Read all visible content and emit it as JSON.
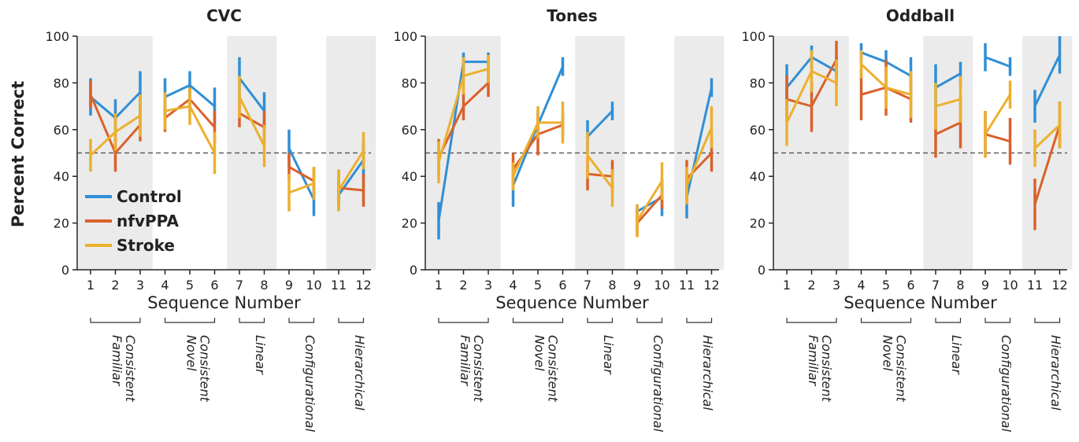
{
  "chart_data": {
    "type": "line",
    "ylabel": "Percent Correct",
    "xlabel": "Sequence Number",
    "ylim": [
      0,
      100
    ],
    "yticks": [
      0,
      20,
      40,
      60,
      80,
      100
    ],
    "chance_line": 50,
    "x": [
      1,
      2,
      3,
      4,
      5,
      6,
      7,
      8,
      9,
      10,
      11,
      12
    ],
    "segments": [
      [
        1,
        3
      ],
      [
        4,
        6
      ],
      [
        7,
        8
      ],
      [
        9,
        10
      ],
      [
        11,
        12
      ]
    ],
    "groups": [
      {
        "lines": [
          "Consistent",
          "Familiar"
        ],
        "range": [
          1,
          3
        ],
        "shaded": true
      },
      {
        "lines": [
          "Consistent",
          "Novel"
        ],
        "range": [
          4,
          6
        ],
        "shaded": false
      },
      {
        "lines": [
          "Linear"
        ],
        "range": [
          7,
          8
        ],
        "shaded": true
      },
      {
        "lines": [
          "Configurational"
        ],
        "range": [
          9,
          10
        ],
        "shaded": false
      },
      {
        "lines": [
          "Hierarchical"
        ],
        "range": [
          11,
          12
        ],
        "shaded": true
      }
    ],
    "colors": {
      "Control": "#2f8fd6",
      "nfvPPA": "#d9622b",
      "Stroke": "#ecb02f"
    },
    "legend": {
      "placement": "lower-left of first panel",
      "entries": [
        "Control",
        "nfvPPA",
        "Stroke"
      ]
    },
    "panels": [
      {
        "title": "CVC",
        "series": [
          {
            "name": "Control",
            "values": [
              74,
              65,
              76,
              74,
              79,
              70,
              82,
              68,
              52,
              30,
              32,
              47
            ],
            "err": [
              8,
              8,
              9,
              8,
              6,
              8,
              9,
              8,
              8,
              7,
              6,
              8
            ]
          },
          {
            "name": "nfvPPA",
            "values": [
              75,
              50,
              62,
              65,
              73,
              61,
              67,
              61,
              44,
              38,
              35,
              34
            ],
            "err": [
              6,
              8,
              7,
              6,
              5,
              7,
              6,
              7,
              6,
              6,
              7,
              7
            ]
          },
          {
            "name": "Stroke",
            "values": [
              49,
              59,
              66,
              68,
              70,
              50,
              74,
              53,
              33,
              37,
              34,
              51
            ],
            "err": [
              7,
              8,
              9,
              8,
              8,
              9,
              9,
              9,
              8,
              7,
              9,
              8
            ]
          }
        ]
      },
      {
        "title": "Tones",
        "series": [
          {
            "name": "Control",
            "values": [
              21,
              89,
              89,
              36,
              62,
              87,
              57,
              68,
              25,
              31,
              31,
              78
            ],
            "err": [
              8,
              4,
              4,
              9,
              6,
              4,
              7,
              4,
              3,
              8,
              9,
              4
            ]
          },
          {
            "name": "nfvPPA",
            "values": [
              48,
              70,
              80,
              43,
              58,
              62,
              41,
              40,
              20,
              32,
              39,
              50
            ],
            "err": [
              8,
              6,
              6,
              7,
              9,
              5,
              7,
              7,
              6,
              6,
              8,
              8
            ]
          },
          {
            "name": "Stroke",
            "values": [
              46,
              83,
              86,
              40,
              63,
              63,
              49,
              35,
              21,
              38,
              36,
              61
            ],
            "err": [
              9,
              8,
              6,
              6,
              7,
              9,
              10,
              8,
              7,
              8,
              8,
              9
            ]
          }
        ]
      },
      {
        "title": "Oddball",
        "series": [
          {
            "name": "Control",
            "values": [
              78,
              91,
              85,
              93,
              89,
              83,
              78,
              84,
              91,
              87,
              70,
              92
            ],
            "err": [
              10,
              5,
              6,
              4,
              5,
              8,
              10,
              5,
              6,
              4,
              7,
              8
            ]
          },
          {
            "name": "nfvPPA",
            "values": [
              73,
              70,
              90,
              75,
              78,
              73,
              58,
              63,
              58,
              55,
              28,
              62
            ],
            "err": [
              10,
              11,
              8,
              11,
              12,
              10,
              10,
              11,
              10,
              10,
              11,
              10
            ]
          },
          {
            "name": "Stroke",
            "values": [
              63,
              85,
              80,
              88,
              78,
              75,
              70,
              73,
              58,
              75,
              52,
              62
            ],
            "err": [
              10,
              9,
              10,
              6,
              9,
              10,
              10,
              10,
              10,
              6,
              8,
              10
            ]
          }
        ]
      }
    ]
  }
}
